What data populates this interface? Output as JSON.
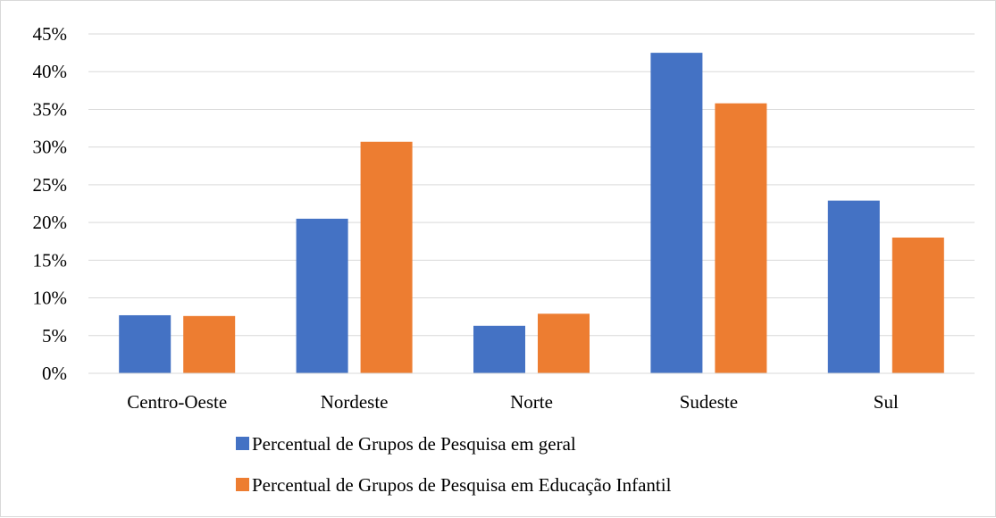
{
  "chart_data": {
    "type": "bar",
    "title": "",
    "xlabel": "",
    "ylabel": "",
    "categories": [
      "Centro-Oeste",
      "Nordeste",
      "Norte",
      "Sudeste",
      "Sul"
    ],
    "series": [
      {
        "name": "Percentual de Grupos de Pesquisa em geral",
        "color": "#4472C4",
        "values": [
          7.7,
          20.5,
          6.3,
          42.5,
          22.9
        ]
      },
      {
        "name": "Percentual de Grupos de Pesquisa em Educação Infantil",
        "color": "#ED7D31",
        "values": [
          7.6,
          30.7,
          7.9,
          35.8,
          18.0
        ]
      }
    ],
    "ylim": [
      0,
      45
    ],
    "y_ticks": [
      "0%",
      "5%",
      "10%",
      "15%",
      "20%",
      "25%",
      "30%",
      "35%",
      "40%",
      "45%"
    ],
    "y_unit": "%",
    "grid": true,
    "legend_position": "bottom"
  }
}
